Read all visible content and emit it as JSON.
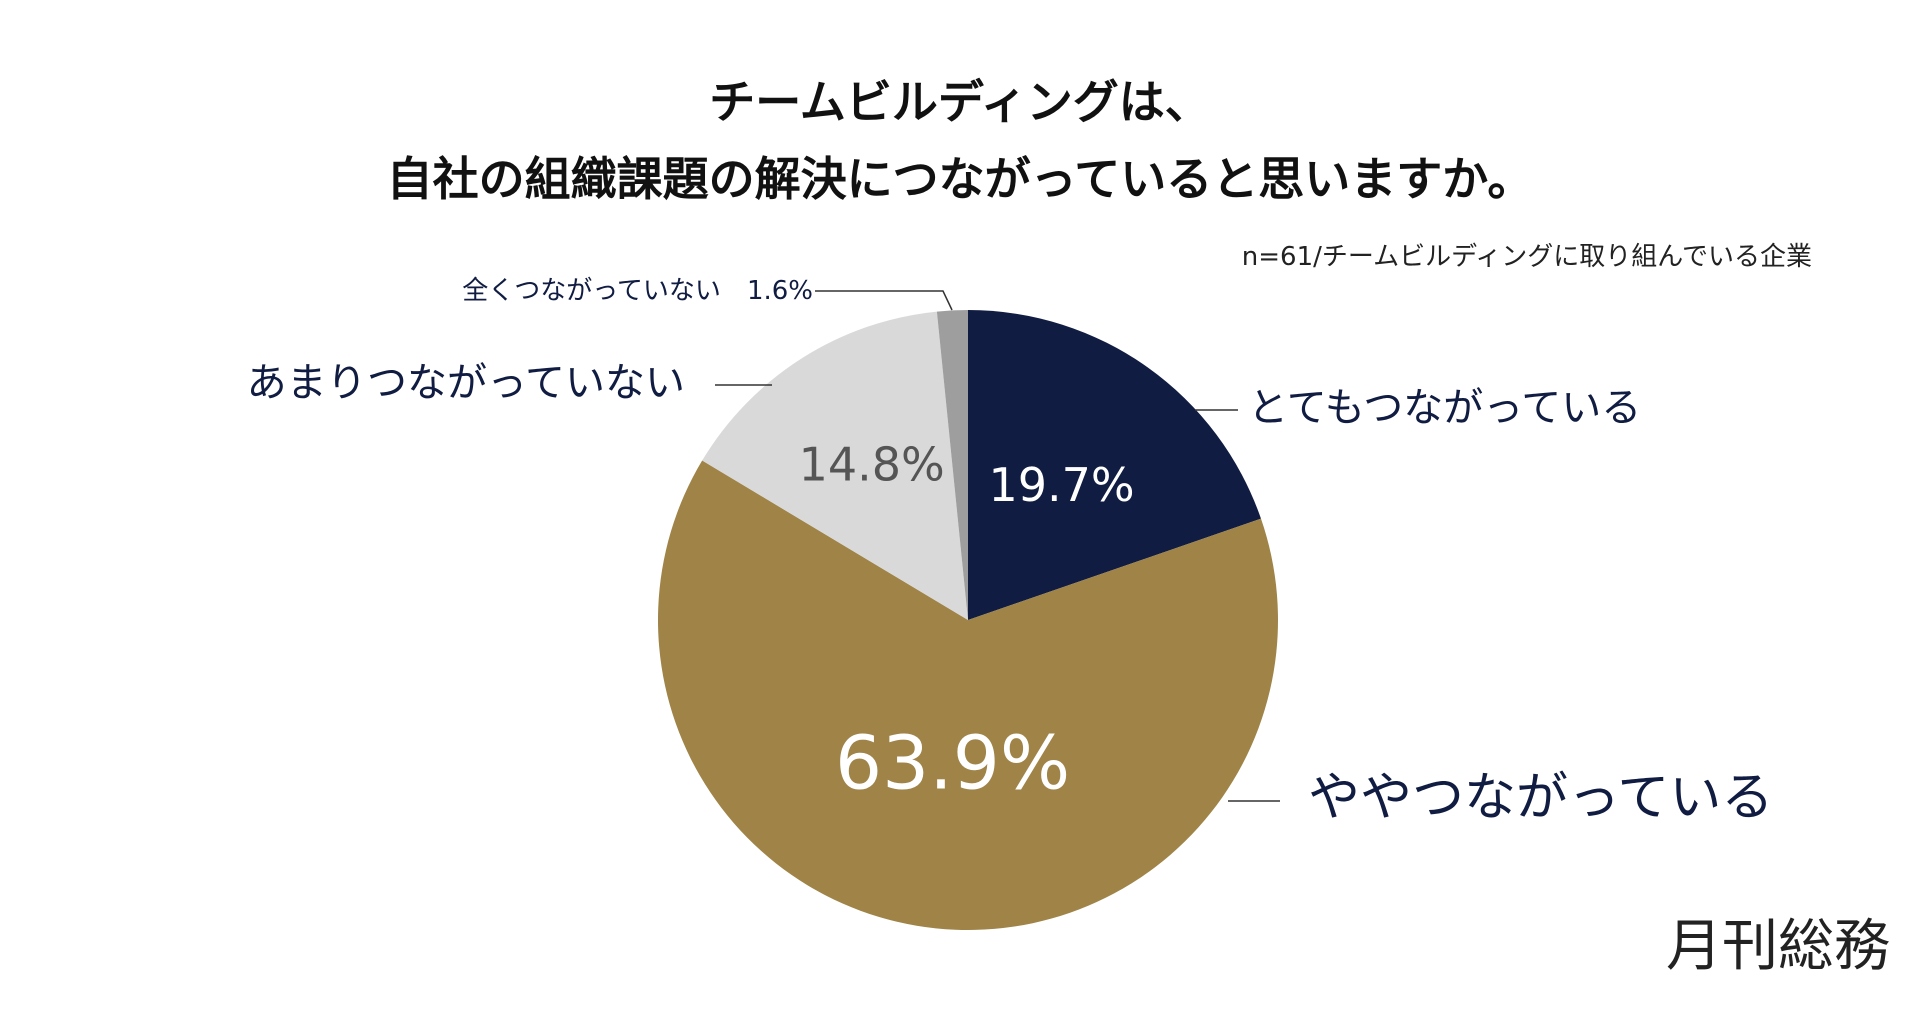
{
  "chart_data": {
    "type": "pie",
    "title_line1": "チームビルディングは、",
    "title_line2": "自社の組織課題の解決につながっていると思いますか。",
    "note": "n=61/チームビルディングに取り組んでいる企業",
    "slices": [
      {
        "label": "とてもつながっている",
        "value": 19.7,
        "value_label": "19.7%",
        "color": "#101c41"
      },
      {
        "label": "ややつながっている",
        "value": 63.9,
        "value_label": "63.9%",
        "color": "#9f8347"
      },
      {
        "label": "あまりつながっていない",
        "value": 14.8,
        "value_label": "14.8%",
        "color": "#d9d9d9"
      },
      {
        "label": "全くつながっていない",
        "value": 1.6,
        "value_label": "1.6%",
        "color": "#9e9e9e"
      }
    ],
    "start": "12 o'clock",
    "direction": "clockwise"
  },
  "brand": "月刊総務",
  "colors": {
    "label_text": "#101c41",
    "title_text": "#111111",
    "pct_dark": "#ffffff",
    "pct_light": "#555555",
    "leader": "#333333"
  }
}
